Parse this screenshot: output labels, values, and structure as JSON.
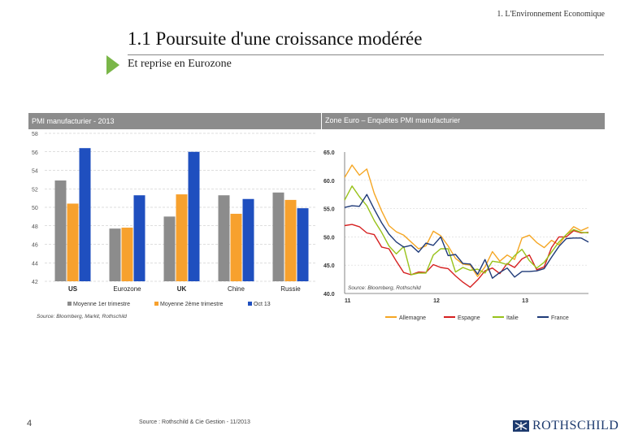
{
  "header": {
    "section": "1. L'Environnement Economique",
    "title": "1.1 Poursuite d'une croissance modérée",
    "subtitle": "Et reprise en Eurozone"
  },
  "colors": {
    "gray": "#8c8c8c",
    "orange": "#f7a12e",
    "blue": "#1f4fbf",
    "germany": "#f5a623",
    "spain": "#d62020",
    "italy": "#98c21a",
    "france": "#1f3a78",
    "accent_green": "#7ab648"
  },
  "chart_data": [
    {
      "type": "bar",
      "title": "PMI manufacturier - 2013",
      "categories": [
        "US",
        "Eurozone",
        "UK",
        "Chine",
        "Russie"
      ],
      "ylim": [
        42,
        58
      ],
      "yticks": [
        "58",
        "56",
        "54",
        "52",
        "50",
        "48",
        "46",
        "44",
        "42"
      ],
      "series": [
        {
          "name": "Moyenne 1er trimestre",
          "color_key": "gray",
          "values": [
            52.9,
            47.7,
            49.0,
            51.3,
            51.6
          ]
        },
        {
          "name": "Moyenne 2ème trimestre",
          "color_key": "orange",
          "values": [
            50.4,
            47.8,
            51.4,
            49.3,
            50.8
          ]
        },
        {
          "name": "Oct 13",
          "color_key": "blue",
          "values": [
            56.4,
            51.3,
            56.0,
            50.9,
            49.9
          ]
        }
      ],
      "source": "Source: Bloomberg, Markit, Rothschild"
    },
    {
      "type": "line",
      "title": "Zone Euro – Enquêtes PMI manufacturier",
      "ylim": [
        40,
        65
      ],
      "yticks": [
        "65.0",
        "60.0",
        "55.0",
        "50.0",
        "45.0",
        "40.0"
      ],
      "xticks": [
        "11",
        "12",
        "13"
      ],
      "xtick_pos": [
        0,
        12,
        24
      ],
      "source": "Source: Bloomberg, Rothschild",
      "series": [
        {
          "name": "Allemagne",
          "color_key": "germany",
          "values": [
            60.5,
            62.7,
            60.9,
            62.0,
            57.7,
            54.6,
            52.0,
            50.9,
            50.3,
            49.1,
            47.9,
            48.4,
            51.0,
            50.2,
            48.4,
            46.2,
            45.2,
            45.0,
            43.0,
            44.7,
            47.4,
            45.7,
            46.8,
            46.0,
            49.8,
            50.3,
            49.0,
            48.1,
            49.4,
            48.6,
            50.4,
            51.8,
            51.1,
            51.7
          ]
        },
        {
          "name": "Espagne",
          "color_key": "spain",
          "values": [
            52.0,
            52.2,
            51.8,
            50.7,
            50.4,
            48.2,
            47.9,
            45.7,
            43.7,
            43.3,
            43.8,
            43.7,
            45.1,
            44.6,
            44.4,
            43.1,
            42.0,
            41.1,
            42.4,
            44.0,
            44.5,
            43.5,
            45.3,
            44.6,
            46.1,
            46.8,
            44.2,
            44.7,
            48.1,
            50.0,
            50.0,
            51.1,
            50.7,
            50.8
          ]
        },
        {
          "name": "Italie",
          "color_key": "italy",
          "values": [
            56.5,
            59.0,
            57.1,
            55.5,
            52.9,
            50.8,
            48.4,
            47.0,
            48.3,
            43.3,
            43.6,
            43.6,
            46.8,
            47.9,
            47.9,
            43.8,
            44.6,
            44.1,
            44.3,
            43.6,
            45.7,
            45.5,
            45.1,
            46.7,
            47.8,
            45.8,
            44.5,
            45.5,
            47.3,
            49.1,
            50.4,
            51.3,
            50.8,
            50.7
          ]
        },
        {
          "name": "France",
          "color_key": "france",
          "values": [
            55.2,
            55.5,
            55.4,
            57.5,
            54.9,
            52.5,
            50.5,
            49.1,
            48.2,
            48.5,
            47.3,
            48.9,
            48.5,
            50.0,
            46.7,
            46.9,
            45.3,
            45.2,
            43.4,
            46.0,
            42.7,
            43.7,
            44.5,
            42.9,
            43.9,
            43.9,
            44.0,
            44.4,
            46.4,
            48.3,
            49.7,
            49.8,
            49.8,
            49.1
          ]
        }
      ]
    }
  ],
  "footer": {
    "page_number": "4",
    "source": "Source : Rothschild & Cie Gestion - 11/2013",
    "logo_text": "ROTHSCHILD"
  }
}
